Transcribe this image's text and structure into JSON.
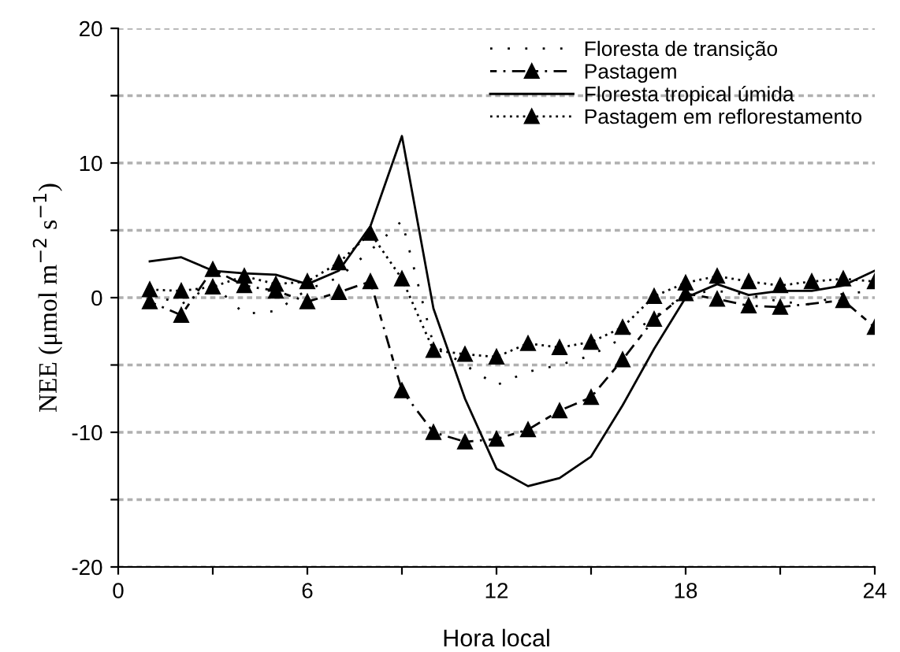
{
  "chart_data": {
    "type": "line",
    "xlabel": "Hora local",
    "ylabel": "NEE (μmol m$^{−2}$ s$^{−1}$)",
    "x": [
      1,
      2,
      3,
      4,
      5,
      6,
      7,
      8,
      9,
      10,
      11,
      12,
      13,
      14,
      15,
      16,
      17,
      18,
      19,
      20,
      21,
      22,
      23,
      24
    ],
    "xlim": [
      0,
      24
    ],
    "xticks": [
      0,
      {
        "value": 3,
        "label": null
      },
      6,
      {
        "value": 9,
        "label": null
      },
      12,
      {
        "value": 15,
        "label": null
      },
      18,
      {
        "value": 21,
        "label": null
      },
      24
    ],
    "ylim": [
      -20,
      20
    ],
    "yticks": [
      -20,
      {
        "value": -15,
        "label": null
      },
      -10,
      {
        "value": -5,
        "label": null
      },
      0,
      {
        "value": 5,
        "label": null
      },
      10,
      {
        "value": 15,
        "label": null
      },
      20
    ],
    "grid": "y",
    "legend": "top right",
    "series": [
      {
        "name": "Floresta de transição",
        "color": "#000000",
        "line_style": "dotted",
        "marker": "none",
        "values": [
          0.3,
          -0.5,
          1.0,
          -1.2,
          -1.0,
          0.6,
          1.5,
          3.5,
          5.7,
          -3.5,
          -5.0,
          -6.5,
          -5.5,
          -5.0,
          -4.3,
          -3.0,
          -1.5,
          0.3,
          0.5,
          0.2,
          -0.3,
          -0.5,
          0.3,
          0.5
        ]
      },
      {
        "name": "Pastagem",
        "color": "#000000",
        "line_style": "dashed",
        "marker": "triangle",
        "x": [
          1,
          2,
          3,
          4,
          5,
          6,
          7,
          8,
          9,
          10,
          11,
          12,
          13,
          14,
          15,
          16,
          17,
          18,
          19,
          20,
          21,
          23,
          24
        ],
        "values": [
          -0.3,
          -1.3,
          2.1,
          0.9,
          0.5,
          -0.3,
          0.4,
          1.2,
          -6.9,
          -10.0,
          -10.7,
          -10.5,
          -9.8,
          -8.4,
          -7.4,
          -4.6,
          -1.6,
          0.3,
          -0.1,
          -0.6,
          -0.7,
          -0.2,
          -2.2
        ]
      },
      {
        "name": "Floresta tropical úmida",
        "color": "#000000",
        "line_style": "solid",
        "marker": "none",
        "values": [
          2.7,
          3.0,
          2.0,
          1.8,
          1.7,
          1.0,
          2.0,
          5.3,
          12.0,
          -0.8,
          -7.5,
          -12.7,
          -14.0,
          -13.4,
          -11.8,
          -8.0,
          -3.8,
          0.0,
          1.0,
          0.2,
          0.5,
          0.5,
          0.9,
          2.0
        ]
      },
      {
        "name": "Pastagem em reflorestamento",
        "color": "#000000",
        "line_style": "dotted",
        "marker": "triangle",
        "x": [
          1,
          2,
          3,
          4,
          5,
          6,
          7,
          8,
          9,
          10,
          11,
          12,
          13,
          14,
          15,
          16,
          17,
          18,
          19,
          20,
          21,
          22,
          23,
          24
        ],
        "values": [
          0.6,
          0.5,
          0.8,
          1.6,
          1.0,
          1.2,
          2.6,
          4.8,
          1.4,
          -3.9,
          -4.2,
          -4.4,
          -3.4,
          -3.7,
          -3.3,
          -2.2,
          0.1,
          1.1,
          1.6,
          1.2,
          0.9,
          1.2,
          1.4,
          1.2
        ]
      }
    ]
  }
}
